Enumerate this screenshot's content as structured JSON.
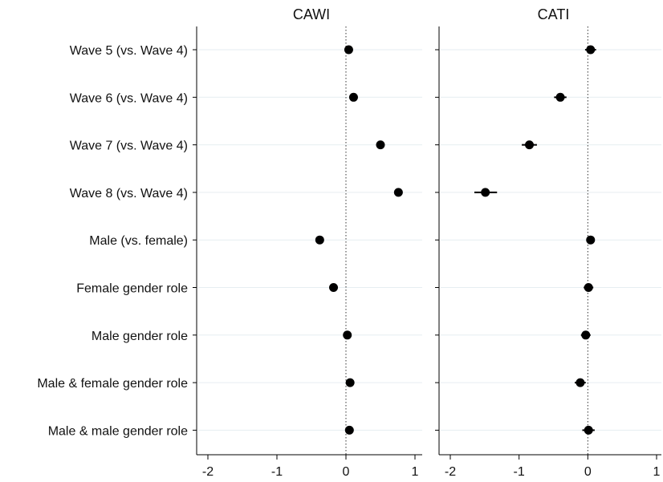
{
  "chart_data": {
    "type": "scatter",
    "subtype": "coefficient-plot",
    "categories": [
      "Wave 5 (vs. Wave 4)",
      "Wave 6 (vs. Wave 4)",
      "Wave 7 (vs. Wave 4)",
      "Wave 8 (vs. Wave 4)",
      "Male (vs. female)",
      "Female gender role",
      "Male gender role",
      "Male & female gender role",
      "Male & male gender role"
    ],
    "xlim": [
      -2,
      1
    ],
    "xticks": [
      -2,
      -1,
      0,
      1
    ],
    "reference_line": 0,
    "grid": "horizontal",
    "panels": [
      {
        "title": "CAWI",
        "points": [
          {
            "est": 0.04,
            "lo": 0.0,
            "hi": 0.08
          },
          {
            "est": 0.11,
            "lo": 0.07,
            "hi": 0.15
          },
          {
            "est": 0.5,
            "lo": 0.46,
            "hi": 0.54
          },
          {
            "est": 0.76,
            "lo": 0.72,
            "hi": 0.8
          },
          {
            "est": -0.38,
            "lo": -0.41,
            "hi": -0.35
          },
          {
            "est": -0.18,
            "lo": -0.21,
            "hi": -0.15
          },
          {
            "est": 0.02,
            "lo": -0.01,
            "hi": 0.05
          },
          {
            "est": 0.06,
            "lo": 0.03,
            "hi": 0.09
          },
          {
            "est": 0.05,
            "lo": 0.02,
            "hi": 0.08
          }
        ]
      },
      {
        "title": "CATI",
        "points": [
          {
            "est": 0.04,
            "lo": -0.04,
            "hi": 0.12
          },
          {
            "est": -0.4,
            "lo": -0.49,
            "hi": -0.31
          },
          {
            "est": -0.85,
            "lo": -0.96,
            "hi": -0.74
          },
          {
            "est": -1.49,
            "lo": -1.65,
            "hi": -1.32
          },
          {
            "est": 0.04,
            "lo": -0.02,
            "hi": 0.1
          },
          {
            "est": 0.01,
            "lo": -0.06,
            "hi": 0.08
          },
          {
            "est": -0.03,
            "lo": -0.1,
            "hi": 0.04
          },
          {
            "est": -0.11,
            "lo": -0.19,
            "hi": -0.03
          },
          {
            "est": 0.01,
            "lo": -0.08,
            "hi": 0.1
          }
        ]
      }
    ]
  }
}
